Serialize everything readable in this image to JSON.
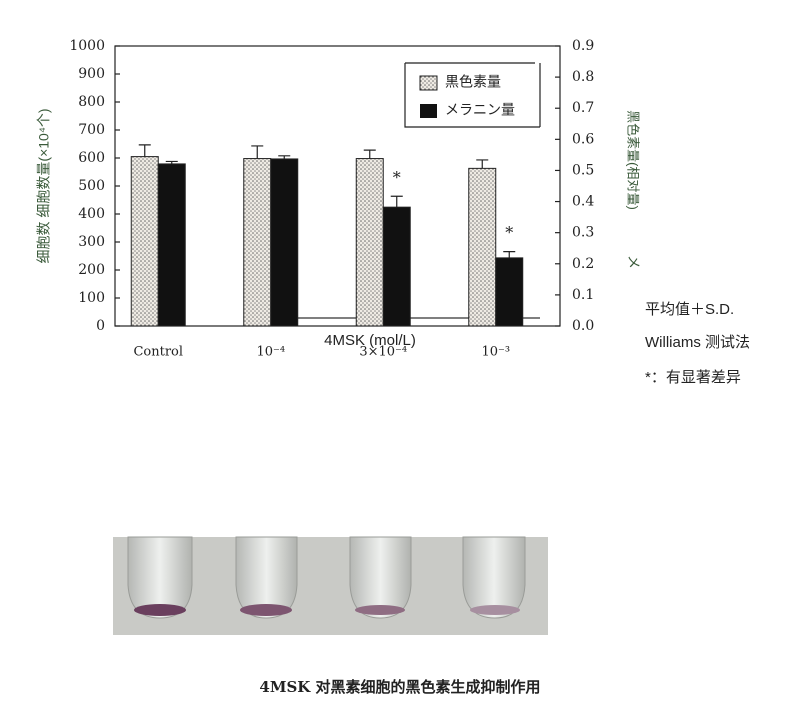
{
  "chart_data": {
    "type": "bar",
    "y_label": "细胞数  细胞数量(×10⁴个)",
    "y2_label": "黑色素量(相对量)",
    "y2_mark": "メ",
    "x_label": "4MSK (mol/L)",
    "categories": [
      "Control",
      "10⁻⁴",
      "3×10⁻⁴",
      "10⁻³"
    ],
    "series": [
      {
        "name": "黒色素量",
        "color": "#e8e4dc",
        "pattern": "dots",
        "values": [
          605,
          598,
          598,
          563
        ],
        "errors": [
          42,
          45,
          30,
          30
        ]
      },
      {
        "name": "メラニン量",
        "color": "#111111",
        "axis": "y2",
        "values": [
          0.521,
          0.537,
          0.382,
          0.219
        ],
        "errors": [
          0.008,
          0.01,
          0.035,
          0.02
        ]
      }
    ],
    "annotations": [
      "*",
      "*"
    ],
    "ylim": [
      0,
      1000
    ],
    "yticks": [
      0,
      100,
      200,
      300,
      400,
      500,
      600,
      700,
      800,
      900,
      1000
    ],
    "y2lim": [
      0,
      0.9
    ],
    "y2ticks": [
      {
        "value": 0,
        "label": "0.0"
      },
      0.1,
      0.2,
      0.3,
      0.4,
      0.5,
      0.6,
      0.7,
      0.8,
      0.9
    ],
    "notes": [
      "平均值＋S.D.",
      "Williams 测试法",
      "*：有显著差异"
    ]
  },
  "caption": "4MSK 对黑素细胞的黑色素生成抑制作用"
}
